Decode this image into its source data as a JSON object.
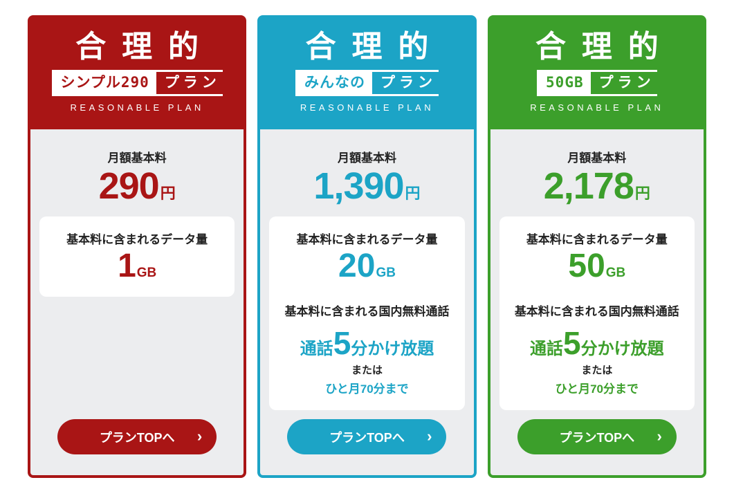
{
  "page": {
    "background": "#ffffff",
    "body_bg": "#ecedef",
    "text_dark": "#222222"
  },
  "shared": {
    "brand_title": "合理的",
    "subtitle_en": "REASONABLE PLAN",
    "badge_suffix": "プラン",
    "monthly_fee_label": "月額基本料",
    "fee_unit": "円",
    "data_label": "基本料に含まれるデータ量",
    "data_unit": "GB",
    "call_label": "基本料に含まれる国内無料通話",
    "call_prefix": "通話",
    "call_big": "5",
    "call_suffix": "分かけ放題",
    "or_text": "または",
    "call_alt": "ひと月70分まで",
    "button_label": "プランTOPへ",
    "button_chevron": "›"
  },
  "plans": [
    {
      "name": "シンプル290プラン",
      "badge_name": "シンプル290",
      "price": "290",
      "data_amount": "1",
      "color": "#a91515",
      "has_call_allowance": false
    },
    {
      "name": "みんなのプラン",
      "badge_name": "みんなの",
      "price": "1,390",
      "data_amount": "20",
      "color": "#1ca4c6",
      "has_call_allowance": true
    },
    {
      "name": "50GBプラン",
      "badge_name": "50GB",
      "price": "2,178",
      "data_amount": "50",
      "color": "#3c9f2b",
      "has_call_allowance": true
    }
  ]
}
